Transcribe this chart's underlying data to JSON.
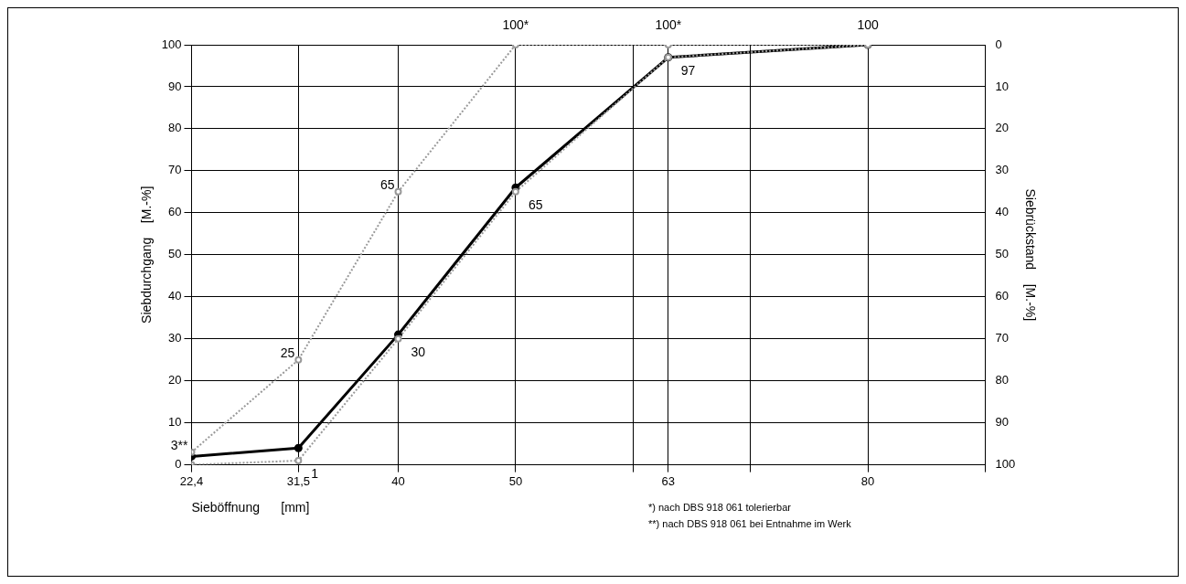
{
  "chart_data": {
    "type": "line",
    "xlabel": "Sieböffnung      [mm]",
    "ylabel": "Siebdurchgang    [M.-%]",
    "y2label": "Siebrückstand    [M.-%]",
    "xlim": [
      22.4,
      90
    ],
    "xticks": [
      {
        "value": 22.4,
        "label": "22,4"
      },
      {
        "value": 31.5,
        "label": "31,5"
      },
      40,
      50,
      {
        "value": 60,
        "label": null
      },
      63,
      {
        "value": 70,
        "label": null
      },
      80,
      {
        "value": 90,
        "label": null
      }
    ],
    "ylim": [
      0,
      100
    ],
    "yticks": [
      0,
      10,
      20,
      30,
      40,
      50,
      60,
      70,
      80,
      90,
      100
    ],
    "y2lim": [
      100,
      0
    ],
    "y2ticks": [
      0,
      10,
      20,
      30,
      40,
      50,
      60,
      70,
      80,
      90,
      100
    ],
    "grid": true,
    "legend": false,
    "series": [
      {
        "color": "#999999",
        "x": [
          22.4,
          31.5,
          40,
          50,
          63,
          80
        ],
        "values": [
          3,
          25,
          65,
          100,
          100,
          100
        ],
        "value_labels": [
          "3**",
          "25",
          "65",
          "100*",
          "100*",
          "100"
        ],
        "marker": "circle",
        "line_style": "dotted"
      },
      {
        "color": "#999999",
        "x": [
          22.4,
          31.5,
          40,
          50,
          63,
          80
        ],
        "values": [
          0,
          1,
          30,
          65,
          97,
          100
        ],
        "value_labels": [
          null,
          "1",
          "30",
          "65",
          "97",
          null
        ],
        "marker": "circle",
        "line_style": "dotted"
      },
      {
        "color": "#000000",
        "x": [
          22.4,
          31.5,
          40,
          50,
          63,
          80
        ],
        "values": [
          2,
          4,
          31,
          66,
          97,
          100
        ],
        "marker": "circle",
        "line_style": "solid"
      }
    ],
    "annotations": [
      "*)  nach DBS 918 061 tolerierbar",
      "**)  nach DBS 918 061 bei Entnahme im Werk"
    ]
  }
}
